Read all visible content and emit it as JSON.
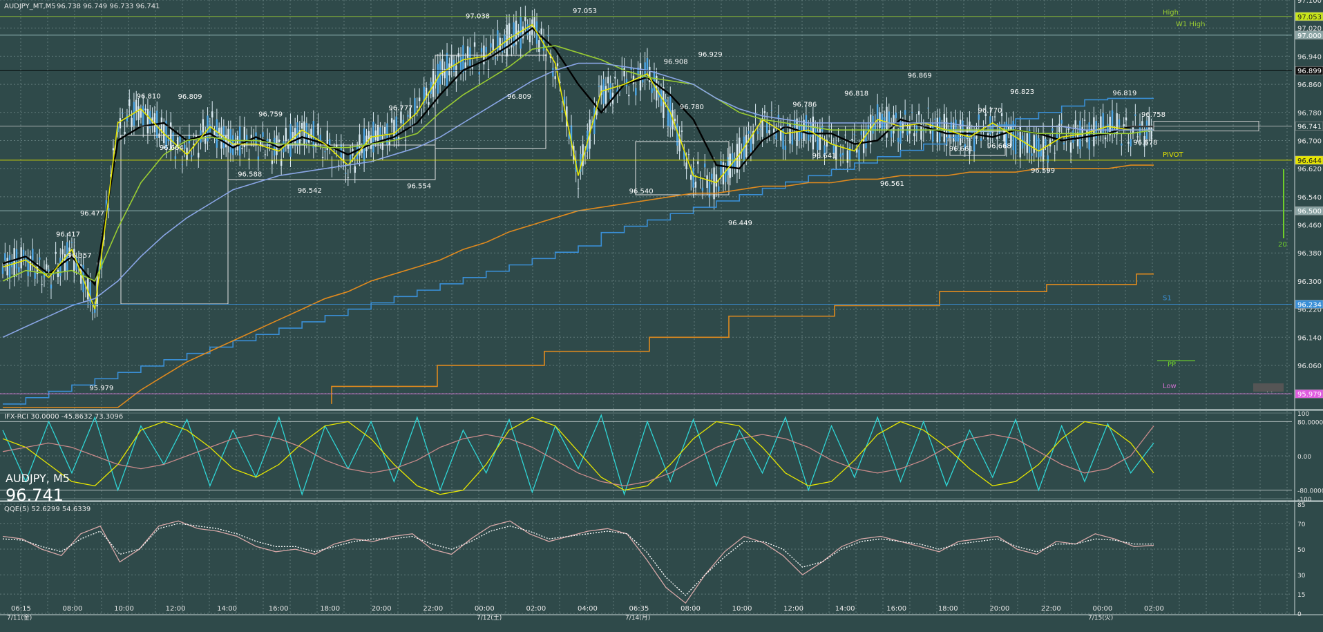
{
  "header": {
    "symbol_info": "AUDJPY_MT,M5",
    "ohlc": "96.738 96.749 96.733 96.741"
  },
  "overlay_symbol": {
    "pair": "AUDJPY, M5",
    "price": "96.741"
  },
  "chart_data": [
    {
      "type": "line",
      "panel": "price",
      "title": "",
      "ylim": [
        95.94,
        97.1
      ],
      "y_ticks": [
        "97.100",
        "97.020",
        "96.940",
        "96.860",
        "96.780",
        "96.700",
        "96.620",
        "96.540",
        "96.460",
        "96.380",
        "96.300",
        "96.220",
        "96.140",
        "96.060",
        "95.980"
      ],
      "levels": [
        {
          "name": "High",
          "value": 97.053,
          "color": "#9acd32",
          "tag": "97.053",
          "tag_bg": "#c8e61a"
        },
        {
          "name": "W1 High",
          "value": 97.053,
          "color": "#9acd32"
        },
        {
          "name": "",
          "value": 97.0,
          "color": "#9bb",
          "tag": "97.000",
          "tag_bg": "#8aa3a3"
        },
        {
          "name": "",
          "value": 96.899,
          "color": "#000",
          "tag": "96.899",
          "tag_bg": "#111"
        },
        {
          "name": "",
          "value": 96.741,
          "color": "#ddd",
          "tag": "96.741",
          "tag_bg": "#2f4a4a"
        },
        {
          "name": "PIVOT",
          "value": 96.644,
          "color": "#e6e600",
          "tag": "96.644",
          "tag_bg": "#e6e600"
        },
        {
          "name": "",
          "value": 96.5,
          "color": "#9bb",
          "tag": "96.500",
          "tag_bg": "#8aa3a3"
        },
        {
          "name": "S1",
          "value": 96.234,
          "color": "#3a8fd6",
          "tag": "96.234",
          "tag_bg": "#3a8fd6"
        },
        {
          "name": "PP",
          "value": 96.073,
          "color": "#6fcf2a"
        },
        {
          "name": "Low",
          "value": 95.979,
          "color": "#d070d0",
          "tag": "95.979",
          "tag_bg": "#e05ae0"
        },
        {
          "name": "W pp",
          "value": 95.995,
          "color": "#ddd",
          "tag": "W pp",
          "tag_bg": "#555"
        }
      ],
      "annotations": [
        {
          "text": "96.417",
          "x": 0.057,
          "y": 96.417
        },
        {
          "text": "96.357",
          "x": 0.067,
          "y": 96.357
        },
        {
          "text": "96.477",
          "x": 0.078,
          "y": 96.477
        },
        {
          "text": "95.979",
          "x": 0.086,
          "y": 95.979
        },
        {
          "text": "96.810",
          "x": 0.127,
          "y": 96.81
        },
        {
          "text": "96.664",
          "x": 0.147,
          "y": 96.664
        },
        {
          "text": "96.809",
          "x": 0.163,
          "y": 96.809
        },
        {
          "text": "96.588",
          "x": 0.215,
          "y": 96.588
        },
        {
          "text": "96.759",
          "x": 0.233,
          "y": 96.759
        },
        {
          "text": "96.542",
          "x": 0.267,
          "y": 96.542
        },
        {
          "text": "96.777",
          "x": 0.346,
          "y": 96.777
        },
        {
          "text": "96.554",
          "x": 0.362,
          "y": 96.554
        },
        {
          "text": "97.038",
          "x": 0.413,
          "y": 97.038
        },
        {
          "text": "96.809",
          "x": 0.449,
          "y": 96.809
        },
        {
          "text": "97.053",
          "x": 0.506,
          "y": 97.053
        },
        {
          "text": "96.540",
          "x": 0.555,
          "y": 96.54
        },
        {
          "text": "96.908",
          "x": 0.585,
          "y": 96.908
        },
        {
          "text": "96.780",
          "x": 0.599,
          "y": 96.78
        },
        {
          "text": "96.929",
          "x": 0.615,
          "y": 96.929
        },
        {
          "text": "96.449",
          "x": 0.641,
          "y": 96.449
        },
        {
          "text": "96.786",
          "x": 0.697,
          "y": 96.786
        },
        {
          "text": "96.641",
          "x": 0.714,
          "y": 96.641
        },
        {
          "text": "96.818",
          "x": 0.742,
          "y": 96.818
        },
        {
          "text": "96.561",
          "x": 0.773,
          "y": 96.561
        },
        {
          "text": "96.869",
          "x": 0.797,
          "y": 96.869
        },
        {
          "text": "96.661",
          "x": 0.833,
          "y": 96.661
        },
        {
          "text": "96.770",
          "x": 0.858,
          "y": 96.77
        },
        {
          "text": "96.668",
          "x": 0.866,
          "y": 96.668
        },
        {
          "text": "96.823",
          "x": 0.886,
          "y": 96.823
        },
        {
          "text": "96.599",
          "x": 0.904,
          "y": 96.599
        },
        {
          "text": "96.819",
          "x": 0.975,
          "y": 96.819
        },
        {
          "text": "96.678",
          "x": 0.993,
          "y": 96.678
        },
        {
          "text": "96.758",
          "x": 1.0,
          "y": 96.758
        }
      ],
      "side_label": {
        "text": "20",
        "color": "#6fcf2a"
      },
      "series": [
        {
          "name": "",
          "color": "#000000",
          "values": [
            96.35,
            96.37,
            96.32,
            96.37,
            96.29,
            96.7,
            96.74,
            96.75,
            96.7,
            96.72,
            96.68,
            96.71,
            96.68,
            96.71,
            96.69,
            96.66,
            96.69,
            96.71,
            96.75,
            96.83,
            96.9,
            96.93,
            96.97,
            97.02,
            96.96,
            96.86,
            96.78,
            96.86,
            96.88,
            96.83,
            96.76,
            96.63,
            96.62,
            96.7,
            96.74,
            96.72,
            96.72,
            96.69,
            96.7,
            96.76,
            96.74,
            96.72,
            96.72,
            96.71,
            96.73,
            96.72,
            96.7,
            96.71,
            96.72,
            96.74,
            96.74
          ]
        },
        {
          "name": "",
          "color": "#e6e600",
          "values": [
            96.34,
            96.36,
            96.31,
            96.39,
            96.22,
            96.75,
            96.79,
            96.72,
            96.66,
            96.74,
            96.69,
            96.69,
            96.67,
            96.73,
            96.69,
            96.63,
            96.71,
            96.72,
            96.78,
            96.89,
            96.93,
            96.94,
            96.99,
            97.03,
            96.92,
            96.6,
            96.84,
            96.86,
            96.89,
            96.78,
            96.6,
            96.58,
            96.66,
            96.76,
            96.72,
            96.73,
            96.69,
            96.67,
            96.76,
            96.74,
            96.75,
            96.73,
            96.71,
            96.75,
            96.71,
            96.67,
            96.71,
            96.72,
            96.74,
            96.73,
            96.73
          ]
        },
        {
          "name": "",
          "color": "#9acd32",
          "values": [
            96.3,
            96.33,
            96.32,
            96.33,
            96.3,
            96.45,
            96.58,
            96.66,
            96.7,
            96.71,
            96.7,
            96.7,
            96.69,
            96.69,
            96.68,
            96.68,
            96.69,
            96.7,
            96.72,
            96.78,
            96.83,
            96.87,
            96.91,
            96.96,
            96.97,
            96.95,
            96.93,
            96.9,
            96.88,
            96.87,
            96.86,
            96.82,
            96.78,
            96.76,
            96.75,
            96.74,
            96.73,
            96.73,
            96.73,
            96.73,
            96.73,
            96.73,
            96.73,
            96.73,
            96.73,
            96.72,
            96.72,
            96.72,
            96.72,
            96.72,
            96.73
          ]
        },
        {
          "name": "",
          "color": "#8aa6e6",
          "values": [
            96.14,
            96.17,
            96.2,
            96.23,
            96.25,
            96.3,
            96.37,
            96.43,
            96.48,
            96.52,
            96.56,
            96.58,
            96.6,
            96.61,
            96.62,
            96.63,
            96.64,
            96.66,
            96.68,
            96.71,
            96.75,
            96.79,
            96.83,
            96.87,
            96.9,
            96.92,
            96.92,
            96.91,
            96.9,
            96.88,
            96.86,
            96.82,
            96.79,
            96.77,
            96.76,
            96.75,
            96.75,
            96.75,
            96.75,
            96.75,
            96.75,
            96.75,
            96.74,
            96.74,
            96.74,
            96.74,
            96.74,
            96.73,
            96.73,
            96.73,
            96.73
          ]
        },
        {
          "name": "",
          "color": "#e08a1e",
          "values": [
            95.94,
            95.94,
            95.94,
            95.94,
            95.94,
            95.94,
            95.99,
            96.03,
            96.07,
            96.1,
            96.13,
            96.16,
            96.19,
            96.22,
            96.25,
            96.27,
            96.3,
            96.32,
            96.34,
            96.36,
            96.39,
            96.41,
            96.44,
            96.46,
            96.48,
            96.5,
            96.51,
            96.52,
            96.53,
            96.54,
            96.55,
            96.55,
            96.56,
            96.57,
            96.57,
            96.58,
            96.58,
            96.59,
            96.59,
            96.6,
            96.6,
            96.6,
            96.61,
            96.61,
            96.61,
            96.62,
            96.62,
            96.62,
            96.62,
            96.63,
            96.63
          ]
        }
      ],
      "x_labels": [
        "06:15",
        "08:00",
        "10:00",
        "12:00",
        "14:00",
        "16:00",
        "18:00",
        "20:00",
        "22:00",
        "00:00",
        "02:00",
        "04:00",
        "06:35",
        "08:00",
        "10:00",
        "12:00",
        "14:00",
        "16:00",
        "18:00",
        "20:00",
        "22:00",
        "00:00",
        "02:00"
      ],
      "date_labels": [
        "7/11(金)",
        "7/12(土)",
        "7/14(月)",
        "7/15(火)"
      ]
    },
    {
      "type": "line",
      "panel": "rci",
      "title": "IFX-RCI 30.0000 -45.8632 73.3096",
      "ylim": [
        -100,
        100
      ],
      "y_ticks": [
        "100",
        "80.0000",
        "0.00",
        "-80.0000",
        "-100"
      ],
      "series": [
        {
          "name": "",
          "color": "#2fd6d6",
          "values": [
            60,
            -60,
            80,
            -40,
            90,
            -80,
            70,
            -20,
            85,
            -70,
            60,
            -50,
            90,
            -90,
            70,
            -30,
            80,
            -60,
            90,
            -80,
            60,
            -40,
            85,
            -85,
            70,
            -30,
            95,
            -90,
            80,
            -60,
            85,
            -70,
            60,
            -40,
            90,
            -80,
            70,
            -50,
            90,
            -60,
            80,
            -70,
            60,
            -50,
            85,
            -80,
            70,
            -60,
            75,
            -40,
            30
          ]
        },
        {
          "name": "",
          "color": "#e6e600",
          "values": [
            40,
            20,
            -20,
            -60,
            -70,
            -20,
            60,
            80,
            60,
            20,
            -30,
            -50,
            -20,
            30,
            70,
            80,
            40,
            -20,
            -70,
            -90,
            -80,
            -20,
            60,
            90,
            70,
            10,
            -50,
            -80,
            -70,
            -20,
            40,
            80,
            70,
            20,
            -40,
            -70,
            -60,
            -10,
            50,
            80,
            60,
            20,
            -30,
            -70,
            -60,
            -20,
            40,
            80,
            70,
            30,
            -40
          ]
        },
        {
          "name": "",
          "color": "#c98a8a",
          "values": [
            10,
            20,
            30,
            20,
            0,
            -20,
            -30,
            -20,
            0,
            20,
            40,
            50,
            40,
            20,
            -10,
            -30,
            -40,
            -30,
            -10,
            20,
            40,
            50,
            40,
            20,
            -10,
            -40,
            -60,
            -70,
            -60,
            -40,
            -10,
            20,
            40,
            50,
            40,
            20,
            -10,
            -30,
            -40,
            -30,
            -10,
            20,
            40,
            50,
            40,
            10,
            -20,
            -40,
            -30,
            0,
            70
          ]
        }
      ]
    },
    {
      "type": "line",
      "panel": "qqe",
      "title": "QQE(5) 52.6299 54.6339",
      "ylim": [
        0,
        85
      ],
      "y_ticks": [
        "85",
        "70",
        "50",
        "30",
        "15",
        "0"
      ],
      "series": [
        {
          "name": "",
          "color": "#d8a8a8",
          "values": [
            60,
            58,
            50,
            45,
            62,
            68,
            40,
            50,
            68,
            72,
            66,
            64,
            60,
            52,
            48,
            50,
            46,
            54,
            58,
            56,
            60,
            62,
            50,
            46,
            58,
            68,
            72,
            62,
            56,
            60,
            64,
            66,
            62,
            42,
            20,
            8,
            30,
            48,
            60,
            55,
            45,
            30,
            40,
            52,
            58,
            60,
            56,
            52,
            48,
            56,
            58,
            60,
            50,
            46,
            56,
            54,
            62,
            58,
            52,
            53
          ]
        },
        {
          "name": "",
          "color": "#ffffff",
          "values": [
            58,
            57,
            52,
            48,
            58,
            64,
            46,
            50,
            66,
            70,
            68,
            66,
            62,
            56,
            52,
            52,
            48,
            52,
            56,
            58,
            58,
            60,
            54,
            50,
            56,
            64,
            68,
            64,
            58,
            60,
            62,
            64,
            62,
            48,
            28,
            14,
            30,
            44,
            56,
            56,
            50,
            36,
            40,
            50,
            56,
            58,
            56,
            54,
            50,
            54,
            56,
            58,
            52,
            48,
            54,
            54,
            58,
            57,
            54,
            54
          ]
        }
      ]
    }
  ],
  "colors": {
    "background": "#2f4a4a",
    "grid": "#6d8888",
    "candle": "#4fa8e8",
    "text": "#e6e6e6"
  }
}
